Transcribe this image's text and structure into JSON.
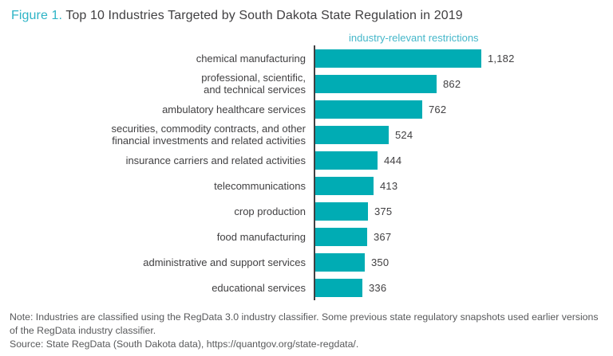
{
  "title": {
    "figure_label": "Figure 1.",
    "text": "Top 10 Industries Targeted by South Dakota State Regulation in 2019"
  },
  "chart_data": {
    "type": "bar",
    "orientation": "horizontal",
    "series_label": "industry-relevant restrictions",
    "categories": [
      "chemical manufacturing",
      "professional, scientific,\nand technical services",
      "ambulatory healthcare services",
      "securities, commodity contracts, and other\nfinancial investments and related activities",
      "insurance carriers and related activities",
      "telecommunications",
      "crop production",
      "food manufacturing",
      "administrative and support services",
      "educational services"
    ],
    "values": [
      1182,
      862,
      762,
      524,
      444,
      413,
      375,
      367,
      350,
      336
    ],
    "value_labels": [
      "1,182",
      "862",
      "762",
      "524",
      "444",
      "413",
      "375",
      "367",
      "350",
      "336"
    ],
    "xlim": [
      0,
      1182
    ],
    "grid": false,
    "legend_position": "top",
    "bar_color": "#00acb4",
    "axis_color": "#414042"
  },
  "notes": {
    "note": "Note: Industries are classified using the RegData 3.0 industry classifier. Some previous state regulatory snapshots used earlier versions of the RegData industry classifier.",
    "source": "Source: State RegData (South Dakota data), https://quantgov.org/state-regdata/."
  },
  "colors": {
    "figure_label_accent": "#2eb4c6",
    "series_label_accent": "#45b7ca",
    "bar": "#00acb4",
    "text_dark": "#414042",
    "text_note": "#58595b"
  }
}
